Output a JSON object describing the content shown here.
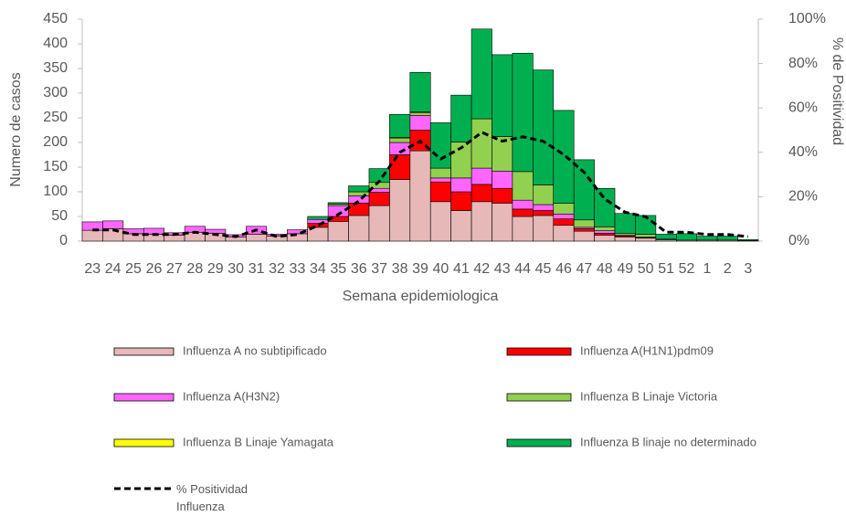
{
  "chart_data": {
    "type": "bar",
    "stacked": true,
    "x_label": "Semana epidemiologica",
    "y_label": "Numero de casos",
    "y2_label": "% de Positividad",
    "categories": [
      "23",
      "24",
      "25",
      "26",
      "27",
      "28",
      "29",
      "30",
      "31",
      "32",
      "33",
      "34",
      "35",
      "36",
      "37",
      "38",
      "39",
      "40",
      "41",
      "42",
      "43",
      "44",
      "45",
      "46",
      "47",
      "48",
      "49",
      "50",
      "51",
      "52",
      "1",
      "2",
      "3"
    ],
    "ylim": [
      0,
      450
    ],
    "yticks": [
      0,
      50,
      100,
      150,
      200,
      250,
      300,
      350,
      400,
      450
    ],
    "y2lim": [
      0,
      100
    ],
    "y2ticks": [
      {
        "value": 0,
        "label": "0%"
      },
      {
        "value": 20,
        "label": "20%"
      },
      {
        "value": 40,
        "label": "40%"
      },
      {
        "value": 60,
        "label": "60%"
      },
      {
        "value": 80,
        "label": "80%"
      },
      {
        "value": 100,
        "label": "100%"
      }
    ],
    "series": [
      {
        "name": "Influenza A no subtipificado",
        "color": "#e6b8b7",
        "values": [
          22,
          25,
          15,
          14,
          12,
          18,
          16,
          8,
          14,
          10,
          15,
          28,
          40,
          52,
          72,
          125,
          183,
          80,
          62,
          80,
          77,
          50,
          52,
          32,
          20,
          12,
          8,
          6,
          3,
          2,
          2,
          2,
          1
        ]
      },
      {
        "name": "Influenza A(H1N1)pdm09",
        "color": "#ff0000",
        "values": [
          0,
          0,
          0,
          0,
          0,
          0,
          0,
          0,
          0,
          0,
          0,
          8,
          10,
          25,
          27,
          50,
          42,
          40,
          38,
          35,
          30,
          15,
          10,
          13,
          5,
          4,
          2,
          1,
          0,
          0,
          0,
          0,
          0
        ]
      },
      {
        "name": "Influenza A(H3N2)",
        "color": "#ff66ff",
        "values": [
          17,
          16,
          10,
          12,
          5,
          12,
          8,
          5,
          16,
          4,
          8,
          8,
          22,
          15,
          8,
          25,
          30,
          8,
          28,
          33,
          35,
          18,
          12,
          10,
          3,
          5,
          2,
          1,
          0,
          0,
          0,
          0,
          0
        ]
      },
      {
        "name": "Influenza B Linaje Victoria",
        "color": "#92d050",
        "values": [
          0,
          0,
          0,
          0,
          0,
          0,
          0,
          0,
          0,
          0,
          0,
          0,
          3,
          8,
          12,
          8,
          5,
          20,
          73,
          100,
          70,
          58,
          40,
          22,
          15,
          8,
          4,
          6,
          1,
          0,
          0,
          0,
          0
        ]
      },
      {
        "name": "Influenza B Linaje Yamagata",
        "color": "#ffff00",
        "values": [
          0,
          0,
          0,
          0,
          0,
          0,
          0,
          0,
          0,
          0,
          0,
          0,
          0,
          0,
          0,
          2,
          2,
          0,
          0,
          0,
          0,
          0,
          0,
          0,
          0,
          0,
          0,
          0,
          0,
          0,
          0,
          0,
          0
        ]
      },
      {
        "name": "Influenza B linaje no determinado",
        "color": "#00b050",
        "values": [
          0,
          0,
          0,
          0,
          0,
          0,
          0,
          0,
          0,
          0,
          0,
          6,
          3,
          12,
          28,
          47,
          80,
          92,
          95,
          182,
          166,
          240,
          233,
          188,
          122,
          78,
          40,
          38,
          10,
          13,
          8,
          8,
          2
        ]
      },
      {
        "name": "% Positividad Influenza",
        "color": "#000000",
        "type": "line",
        "axis": "y2",
        "values": [
          5,
          5,
          3,
          3,
          3,
          4,
          3,
          2,
          5,
          2,
          3,
          7,
          12,
          18,
          27,
          40,
          45,
          37,
          42,
          49,
          45,
          47,
          45,
          39,
          31,
          19,
          13,
          11,
          4,
          4,
          3,
          3,
          2
        ]
      }
    ]
  }
}
